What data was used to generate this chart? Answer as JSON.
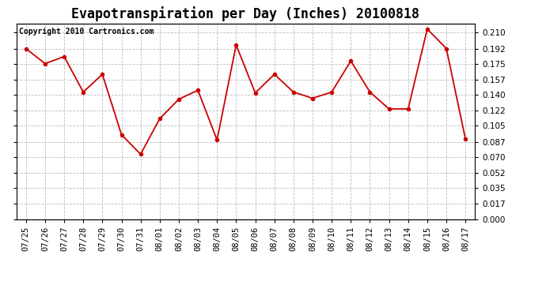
{
  "title": "Evapotranspiration per Day (Inches) 20100818",
  "copyright_text": "Copyright 2010 Cartronics.com",
  "dates": [
    "07/25",
    "07/26",
    "07/27",
    "07/28",
    "07/29",
    "07/30",
    "07/31",
    "08/01",
    "08/02",
    "08/03",
    "08/04",
    "08/05",
    "08/06",
    "08/07",
    "08/08",
    "08/09",
    "08/10",
    "08/11",
    "08/12",
    "08/13",
    "08/14",
    "08/15",
    "08/16",
    "08/17"
  ],
  "values": [
    0.192,
    0.175,
    0.183,
    0.143,
    0.163,
    0.095,
    0.073,
    0.113,
    0.135,
    0.145,
    0.089,
    0.196,
    0.142,
    0.163,
    0.143,
    0.136,
    0.143,
    0.178,
    0.143,
    0.124,
    0.124,
    0.214,
    0.192,
    0.09
  ],
  "yticks": [
    0.0,
    0.017,
    0.035,
    0.052,
    0.07,
    0.087,
    0.105,
    0.122,
    0.14,
    0.157,
    0.175,
    0.192,
    0.21
  ],
  "ylim": [
    0.0,
    0.22
  ],
  "line_color": "#cc0000",
  "marker_color": "#cc0000",
  "grid_color": "#bbbbbb",
  "bg_color": "#ffffff",
  "title_fontsize": 12,
  "tick_fontsize": 7.5,
  "copyright_fontsize": 7.0
}
